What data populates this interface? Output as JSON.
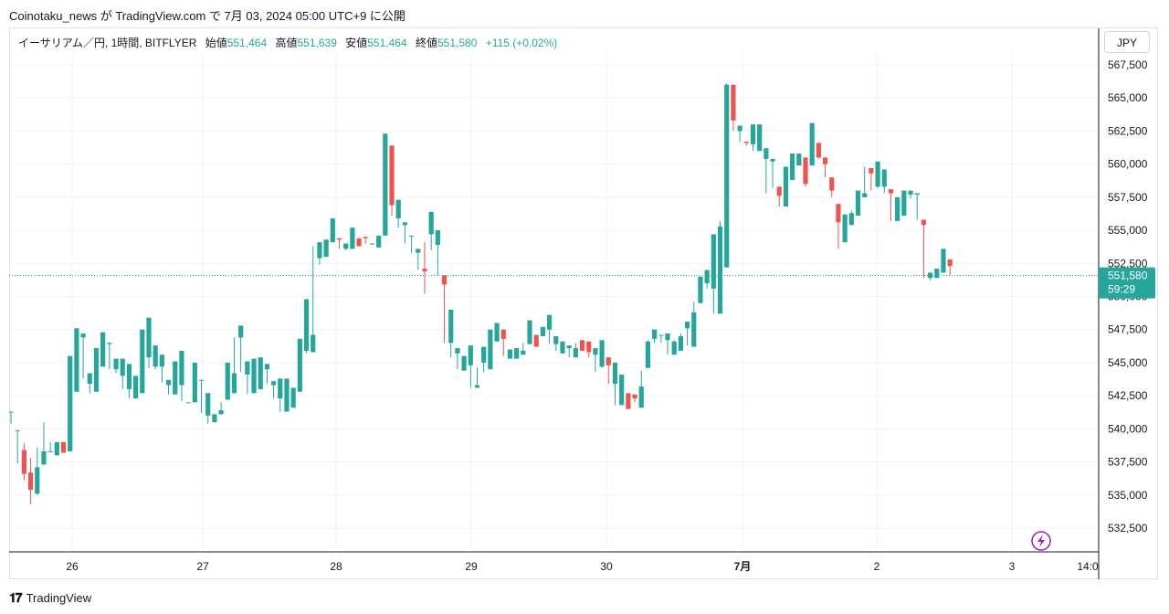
{
  "publisher_line": "Coinotaku_news が TradingView.com で 7月 03, 2024 05:00 UTC+9 に公開",
  "legend": {
    "symbol": "イーサリアム／円, 1時間, BITFLYER",
    "open_label": "始値",
    "open": "551,464",
    "high_label": "高値",
    "high": "551,639",
    "low_label": "安値",
    "low": "551,464",
    "close_label": "終値",
    "close": "551,580",
    "change": "+115 (+0.02%)"
  },
  "currency": "JPY",
  "price_badge": {
    "price": "551,580",
    "countdown": "59:29"
  },
  "footer_brand": "TradingView",
  "colors": {
    "up": "#26a69a",
    "down": "#ef5350",
    "grid": "#f0f3fa",
    "axis": "#131722"
  },
  "chart_data": {
    "type": "candlestick",
    "title": "イーサリアム／円, 1時間, BITFLYER",
    "ylim": [
      531000,
      567500
    ],
    "y_ticks": [
      "532,500",
      "535,000",
      "537,500",
      "540,000",
      "542,500",
      "545,000",
      "547,500",
      "550,000",
      "552,500",
      "555,000",
      "557,500",
      "560,000",
      "562,500",
      "565,000",
      "567,500"
    ],
    "x_ticks": [
      "26",
      "27",
      "28",
      "29",
      "30",
      "7月",
      "2",
      "3",
      "14:0"
    ],
    "last_price": 551580,
    "candles": [
      [
        541300,
        541300,
        541200,
        540400
      ],
      [
        539900,
        539900,
        537400,
        538500
      ],
      [
        538400,
        536600,
        536100,
        538900
      ],
      [
        536700,
        535400,
        534300,
        537800
      ],
      [
        535100,
        537100,
        535000,
        538600
      ],
      [
        537300,
        538300,
        537600,
        540500
      ],
      [
        538300,
        538300,
        538300,
        539000
      ],
      [
        538000,
        539000,
        538800,
        538900
      ],
      [
        539000,
        538200,
        538400,
        539000
      ],
      [
        538300,
        545500,
        542800,
        540400
      ],
      [
        542800,
        547600,
        546000,
        545100
      ],
      [
        546900,
        547200,
        547000,
        543800
      ],
      [
        543400,
        544200,
        543800,
        542700
      ],
      [
        542800,
        546100,
        543600,
        544500
      ],
      [
        544700,
        547300,
        546500,
        545900
      ],
      [
        546400,
        546500,
        546400,
        544500
      ],
      [
        544500,
        545300,
        545200,
        544200
      ],
      [
        544000,
        545300,
        544800,
        543000
      ],
      [
        543000,
        544900,
        544200,
        542300
      ],
      [
        542300,
        544000,
        543300,
        542700
      ],
      [
        542700,
        547500,
        546400,
        545000
      ],
      [
        545400,
        548400,
        547200,
        544600
      ],
      [
        544700,
        546300,
        546100,
        544500
      ],
      [
        544700,
        545600,
        545000,
        543500
      ],
      [
        543300,
        543700,
        543700,
        542600
      ],
      [
        542600,
        545100,
        544200,
        542600
      ],
      [
        543300,
        545900,
        544200,
        542100
      ],
      [
        542000,
        542000,
        542000,
        542000
      ],
      [
        542000,
        545000,
        543800,
        543800
      ],
      [
        543700,
        543700,
        543100,
        541200
      ],
      [
        541000,
        542700,
        542200,
        540400
      ],
      [
        540500,
        541100,
        541100,
        540500
      ],
      [
        541100,
        541400,
        541100,
        542000
      ],
      [
        542200,
        545000,
        544500,
        542400
      ],
      [
        542700,
        544200,
        544200,
        546900
      ],
      [
        546900,
        547800,
        547100,
        544300
      ],
      [
        544100,
        545100,
        544900,
        542700
      ],
      [
        542700,
        545300,
        544800,
        543100
      ],
      [
        543000,
        545400,
        544900,
        544400
      ],
      [
        544500,
        544900,
        544800,
        543400
      ],
      [
        543300,
        543600,
        543400,
        542300
      ],
      [
        542300,
        543800,
        543500,
        541300
      ],
      [
        541300,
        543800,
        543000,
        541800
      ],
      [
        541600,
        543100,
        543000,
        542800
      ],
      [
        542800,
        546800,
        545600,
        545800
      ],
      [
        545900,
        549800,
        549800,
        545700
      ],
      [
        545800,
        547100,
        546000,
        553800
      ],
      [
        552900,
        554100,
        553600,
        552400
      ],
      [
        553000,
        554300,
        553700,
        553900
      ],
      [
        554100,
        555900,
        555000,
        554100
      ],
      [
        554400,
        554300,
        554200,
        553600
      ],
      [
        553600,
        554000,
        553700,
        553500
      ],
      [
        553600,
        555200,
        554100,
        554200
      ],
      [
        554400,
        553800,
        553900,
        554200
      ],
      [
        554500,
        554400,
        554000,
        554000
      ],
      [
        554000,
        554000,
        553900,
        553900
      ],
      [
        553700,
        554600,
        554400,
        554300
      ],
      [
        554600,
        562300,
        562000,
        554700
      ],
      [
        561400,
        556900,
        556900,
        556100
      ],
      [
        555900,
        557300,
        557200,
        555200
      ],
      [
        555400,
        555600,
        554800,
        554000
      ],
      [
        554600,
        554600,
        554500,
        553300
      ],
      [
        553300,
        553600,
        553500,
        552000
      ],
      [
        552100,
        551900,
        550200,
        554100
      ],
      [
        554700,
        556400,
        555000,
        553500
      ],
      [
        553900,
        555000,
        554400,
        551600
      ],
      [
        551600,
        550900,
        549200,
        546500
      ],
      [
        546500,
        549000,
        547600,
        545400
      ],
      [
        545700,
        546100,
        545600,
        544500
      ],
      [
        544400,
        545500,
        545300,
        544800
      ],
      [
        544800,
        546300,
        545900,
        543100
      ],
      [
        543100,
        543300,
        543100,
        544600
      ],
      [
        545000,
        546200,
        545500,
        544300
      ],
      [
        544500,
        547500,
        547100,
        546600
      ],
      [
        546600,
        548000,
        547400,
        547200
      ],
      [
        547500,
        546800,
        546700,
        545500
      ],
      [
        545300,
        546000,
        545800,
        545400
      ],
      [
        545300,
        546100,
        545500,
        545500
      ],
      [
        545600,
        545900,
        545700,
        546500
      ],
      [
        546400,
        548200,
        547600,
        547000
      ],
      [
        547100,
        546200,
        546200,
        546800
      ],
      [
        547000,
        547700,
        547500,
        547200
      ],
      [
        547500,
        548600,
        548000,
        546400
      ],
      [
        546400,
        547000,
        546700,
        545900
      ],
      [
        545700,
        546600,
        546300,
        546100
      ],
      [
        546100,
        546300,
        546300,
        545400
      ],
      [
        545400,
        546100,
        546100,
        546500
      ],
      [
        546700,
        545900,
        546700,
        546400
      ],
      [
        546600,
        545800,
        545400,
        545800
      ],
      [
        545600,
        546100,
        546100,
        544300
      ],
      [
        544700,
        546700,
        546200,
        544600
      ],
      [
        545400,
        544800,
        544600,
        543400
      ],
      [
        543400,
        545000,
        544100,
        541800
      ],
      [
        541800,
        544100,
        543300,
        542800
      ],
      [
        542700,
        541500,
        541500,
        542600
      ],
      [
        542600,
        542300,
        542400,
        542000
      ],
      [
        541600,
        543200,
        542500,
        544400
      ],
      [
        544600,
        546600,
        546700,
        545000
      ],
      [
        546800,
        547500,
        547300,
        546500
      ],
      [
        547100,
        547100,
        546800,
        546500
      ],
      [
        546700,
        547200,
        547000,
        545600
      ],
      [
        545600,
        546600,
        546700,
        546000
      ],
      [
        545900,
        547000,
        547000,
        547200
      ],
      [
        547600,
        548100,
        547800,
        546300
      ],
      [
        546200,
        548800,
        548600,
        549600
      ],
      [
        549500,
        551500,
        550900,
        551000
      ],
      [
        551000,
        552000,
        551700,
        550600
      ],
      [
        550600,
        554700,
        553300,
        548700
      ],
      [
        548700,
        555300,
        555700,
        552200
      ],
      [
        552200,
        566000,
        565800,
        566100
      ],
      [
        566000,
        563300,
        563100,
        562500
      ],
      [
        562500,
        562900,
        562700,
        561700
      ],
      [
        561700,
        561600,
        561400,
        561400
      ],
      [
        561500,
        563000,
        562800,
        561000
      ],
      [
        561000,
        563000,
        562700,
        561000
      ],
      [
        560400,
        561200,
        560300,
        557800
      ],
      [
        560200,
        560400,
        559300,
        558200
      ],
      [
        558300,
        557600,
        556800,
        558300
      ],
      [
        556800,
        559800,
        559500,
        558800
      ],
      [
        558800,
        560800,
        560400,
        559500
      ],
      [
        559900,
        560800,
        560600,
        560300
      ],
      [
        560500,
        558500,
        558300,
        559500
      ],
      [
        559900,
        563100,
        563100,
        561800
      ],
      [
        561600,
        560500,
        560500,
        560400
      ],
      [
        560500,
        560000,
        560000,
        559000
      ],
      [
        559000,
        558000,
        558200,
        557500
      ],
      [
        557000,
        555600,
        554700,
        553600
      ],
      [
        554100,
        556200,
        555600,
        555400
      ],
      [
        555400,
        556300,
        556500,
        556400
      ],
      [
        556100,
        558000,
        558000,
        557300
      ],
      [
        557500,
        557800,
        557700,
        559800
      ],
      [
        559700,
        559300,
        559000,
        558000
      ],
      [
        558300,
        560200,
        559800,
        558200
      ],
      [
        558300,
        559600,
        559400,
        557800
      ],
      [
        558100,
        557800,
        557600,
        555700
      ],
      [
        555700,
        557500,
        557500,
        556000
      ],
      [
        556100,
        558000,
        557900,
        557900
      ],
      [
        557700,
        558000,
        557700,
        557400
      ],
      [
        557700,
        557800,
        557700,
        555800
      ],
      [
        555800,
        555400,
        555300,
        551400
      ],
      [
        551400,
        551800,
        551700,
        551200
      ],
      [
        551400,
        552100,
        552000,
        551600
      ],
      [
        551800,
        553600,
        553600,
        552300
      ],
      [
        552800,
        552300,
        552500,
        551600
      ]
    ]
  }
}
